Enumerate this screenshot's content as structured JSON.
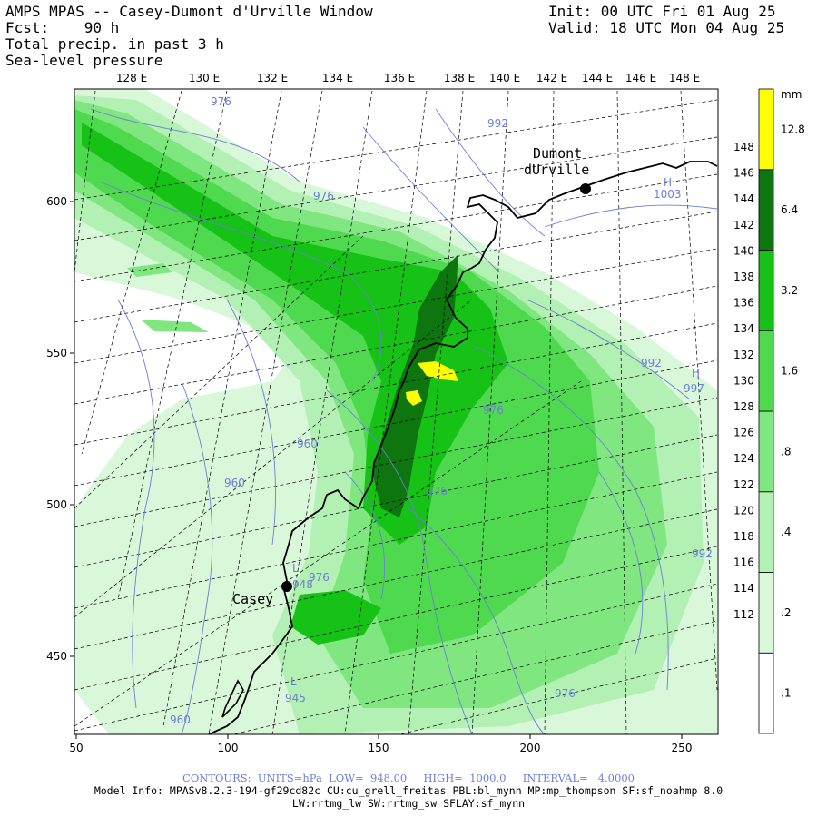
{
  "header": {
    "left_lines": [
      "AMPS MPAS -- Casey-Dumont d'Urville Window",
      "Fcst:    90 h",
      "Total precip. in past 3 h"
    ],
    "overlay_label": "Sea-level pressure",
    "right_lines": [
      "Init: 00 UTC Fri 01 Aug 25",
      "Valid: 18 UTC Mon 04 Aug 25"
    ]
  },
  "map": {
    "top_axis_labels": [
      "128 E",
      "130 E",
      "132 E",
      "134 E",
      "136 E",
      "138 E",
      "140 E",
      "142 E",
      "144 E",
      "146 E",
      "148 E"
    ],
    "right_axis_labels": [
      "148 E",
      "146 E",
      "144 E",
      "142 E",
      "140 E",
      "138 E",
      "136 E",
      "134 E",
      "132 E",
      "130 E",
      "128 E",
      "126 E",
      "124 E",
      "122 E",
      "120 E",
      "118 E",
      "116 E",
      "114 E",
      "112 E"
    ],
    "x_axis_labels": [
      "50",
      "100",
      "150",
      "200",
      "250"
    ],
    "y_axis_labels": [
      "600",
      "550",
      "500",
      "450"
    ],
    "places": [
      {
        "name": "Dumont d'Urville",
        "lines": [
          "Dumont",
          "dUrville"
        ]
      },
      {
        "name": "Casey",
        "lines": [
          "Casey"
        ]
      }
    ],
    "pressure_labels": [
      "976",
      "976",
      "992",
      "1003",
      "H",
      "992",
      "H",
      "997",
      "976",
      "960",
      "960",
      "976",
      "992",
      "L",
      "948",
      "L",
      "945",
      "976",
      "960",
      "976"
    ],
    "colors": {
      "precip_0_2": "#d9f7d9",
      "precip_0_4": "#b3f0b3",
      "precip_0_8": "#80e680",
      "precip_1_6": "#4fd94f",
      "precip_3_2": "#16c216",
      "precip_6_4": "#0e760e",
      "precip_12_8": "#ffff00",
      "isobar": "#6c7fd6",
      "coast": "#000000"
    }
  },
  "colorbar": {
    "unit": "mm",
    "levels": [
      ".1",
      ".2",
      ".4",
      ".8",
      "1.6",
      "3.2",
      "6.4",
      "12.8"
    ]
  },
  "footer": {
    "line1": "CONTOURS:  UNITS=hPa  LOW=  948.00     HIGH=  1000.0     INTERVAL=   4.0000",
    "line2": "Model Info: MPASv8.2.3-194-gf29cd82c CU:cu_grell_freitas PBL:bl_mynn MP:mp_thompson SF:sf_noahmp 8.0",
    "line3": "LW:rrtmg_lw SW:rrtmg_sw SFLAY:sf_mynn"
  }
}
